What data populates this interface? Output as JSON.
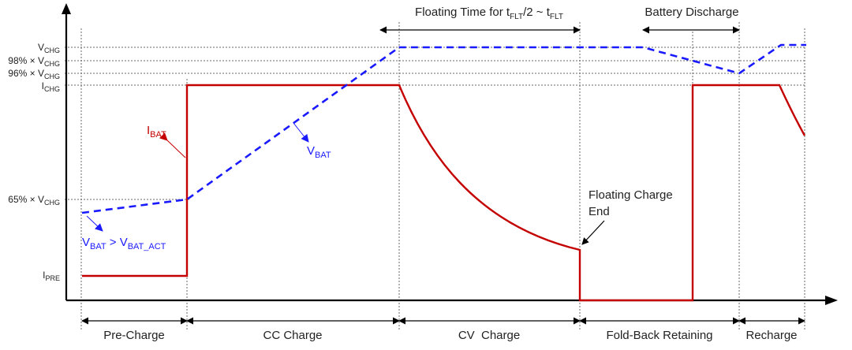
{
  "y_levels": {
    "v_chg": {
      "main": "V",
      "sub": "CHG"
    },
    "v98": {
      "main": "98% × V",
      "sub": "CHG"
    },
    "v96": {
      "main": "96% × V",
      "sub": "CHG"
    },
    "i_chg": {
      "main": "I",
      "sub": "CHG"
    },
    "v65": {
      "main": "65% × V",
      "sub": "CHG"
    },
    "i_pre": {
      "main": "I",
      "sub": "PRE"
    }
  },
  "phases": [
    "Pre-Charge",
    "CC Charge",
    "CV  Charge",
    "Fold-Back Retaining",
    "Recharge"
  ],
  "top_labels": {
    "floating_a": "Floating Time for t",
    "floating_b": "FLT",
    "floating_c": "/2 ~ t",
    "floating_d": "FLT",
    "discharge": "Battery Discharge"
  },
  "annotations": {
    "ibat": {
      "main": "I",
      "sub": "BAT"
    },
    "vbat": {
      "main": "V",
      "sub": "BAT"
    },
    "vbat_act_a": "V",
    "vbat_act_b": "BAT",
    "vbat_act_c": " > V",
    "vbat_act_d": "BAT_ACT",
    "float_end_1": "Floating Charge",
    "float_end_2": "End"
  },
  "colors": {
    "ibat": "#c40000",
    "vbat": "#1a1aff"
  }
}
